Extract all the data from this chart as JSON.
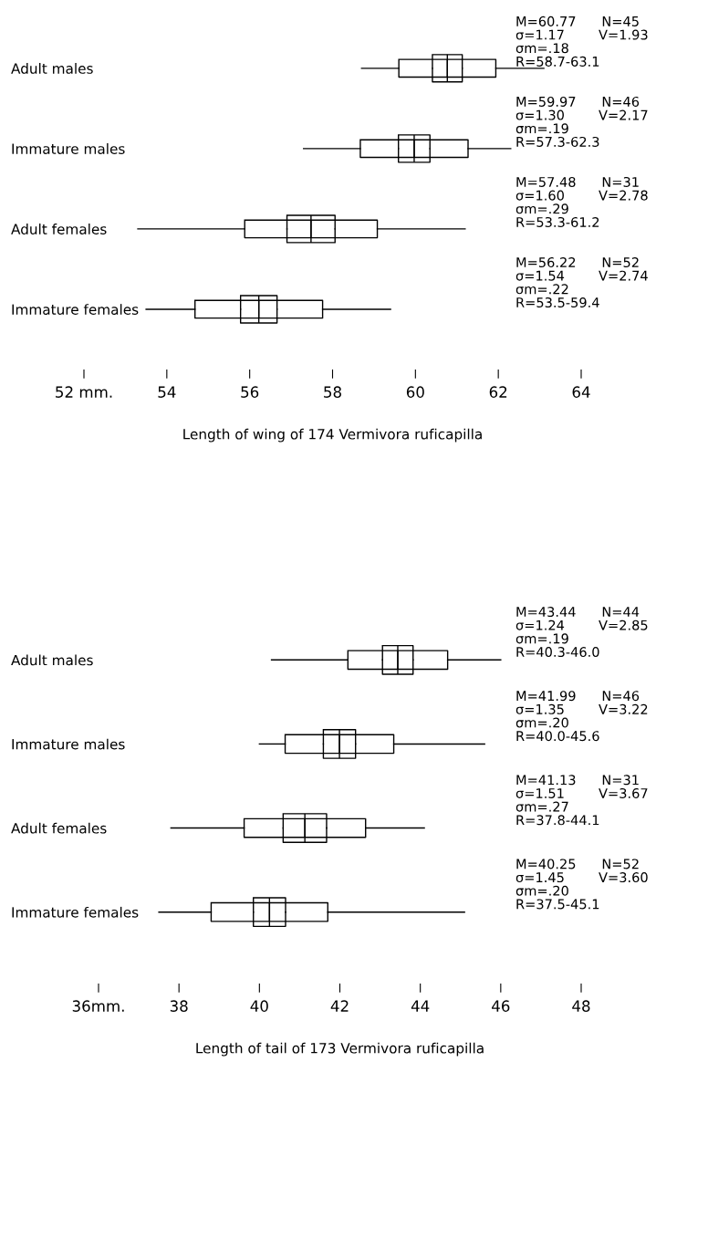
{
  "chart_data": [
    {
      "type": "box",
      "orientation": "horizontal",
      "xlabel": "Length of wing of 174 Vermivora ruficapilla",
      "categories": [
        "Adult males",
        "Immature males",
        "Adult females",
        "Immature females"
      ],
      "xlim": [
        52,
        64
      ],
      "xticks": [
        {
          "value": 52,
          "label": "52 mm."
        },
        54,
        56,
        58,
        60,
        62,
        64
      ],
      "series": [
        {
          "color": "#000000",
          "boxes": [
            {
              "low": 58.7,
              "q1": 59.6,
              "median": 60.77,
              "q3": 61.94,
              "high": 63.1
            },
            {
              "low": 57.3,
              "q1": 58.67,
              "median": 59.97,
              "q3": 61.27,
              "high": 62.3
            },
            {
              "low": 53.3,
              "q1": 55.88,
              "median": 57.48,
              "q3": 59.08,
              "high": 61.2
            },
            {
              "low": 53.5,
              "q1": 54.68,
              "median": 56.22,
              "q3": 57.76,
              "high": 59.4
            }
          ]
        },
        {
          "color": "#000000",
          "boxes": [
            {
              "low": 60.41,
              "q1": 60.41,
              "median": 60.77,
              "q3": 61.13,
              "high": 61.13
            },
            {
              "low": 59.59,
              "q1": 59.59,
              "median": 59.97,
              "q3": 60.35,
              "high": 60.35
            },
            {
              "low": 56.9,
              "q1": 56.9,
              "median": 57.48,
              "q3": 58.06,
              "high": 58.06
            },
            {
              "low": 55.78,
              "q1": 55.78,
              "median": 56.22,
              "q3": 56.66,
              "high": 56.66
            }
          ]
        }
      ],
      "annotations": [
        "M=60.77      N=45\nσ=1.17        V=1.93\nσm=.18\nR=58.7-63.1",
        "M=59.97      N=46\nσ=1.30        V=2.17\nσm=.19\nR=57.3-62.3",
        "M=57.48      N=31\nσ=1.60        V=2.78\nσm=.29\nR=53.3-61.2",
        "M=56.22      N=52\nσ=1.54        V=2.74\nσm=.22\nR=53.5-59.4"
      ]
    },
    {
      "type": "box",
      "orientation": "horizontal",
      "xlabel": "Length of tail of 173 Vermivora ruficapilla",
      "categories": [
        "Adult males",
        "Immature males",
        "Adult females",
        "Immature females"
      ],
      "xlim": [
        36,
        48
      ],
      "xticks": [
        {
          "value": 36,
          "label": "36mm."
        },
        38,
        40,
        42,
        44,
        46,
        48
      ],
      "series": [
        {
          "color": "#000000",
          "boxes": [
            {
              "low": 40.3,
              "q1": 42.2,
              "median": 43.44,
              "q3": 44.68,
              "high": 46.0
            },
            {
              "low": 40.0,
              "q1": 40.64,
              "median": 41.99,
              "q3": 43.34,
              "high": 45.6
            },
            {
              "low": 37.8,
              "q1": 39.62,
              "median": 41.13,
              "q3": 42.64,
              "high": 44.1
            },
            {
              "low": 37.5,
              "q1": 38.8,
              "median": 40.25,
              "q3": 41.7,
              "high": 45.1
            }
          ]
        },
        {
          "color": "#000000",
          "boxes": [
            {
              "low": 43.06,
              "q1": 43.06,
              "median": 43.44,
              "q3": 43.82,
              "high": 43.82
            },
            {
              "low": 41.59,
              "q1": 41.59,
              "median": 41.99,
              "q3": 42.39,
              "high": 42.39
            },
            {
              "low": 40.59,
              "q1": 40.59,
              "median": 41.13,
              "q3": 41.67,
              "high": 41.67
            },
            {
              "low": 39.85,
              "q1": 39.85,
              "median": 40.25,
              "q3": 40.65,
              "high": 40.65
            }
          ]
        }
      ],
      "annotations": [
        "M=43.44      N=44\nσ=1.24        V=2.85\nσm=.19\nR=40.3-46.0",
        "M=41.99      N=46\nσ=1.35        V=3.22\nσm=.20\nR=40.0-45.6",
        "M=41.13      N=31\nσ=1.51        V=3.67\nσm=.27\nR=37.8-44.1",
        "M=40.25      N=52\nσ=1.45        V=3.60\nσm=.20\nR=37.5-45.1"
      ]
    }
  ]
}
